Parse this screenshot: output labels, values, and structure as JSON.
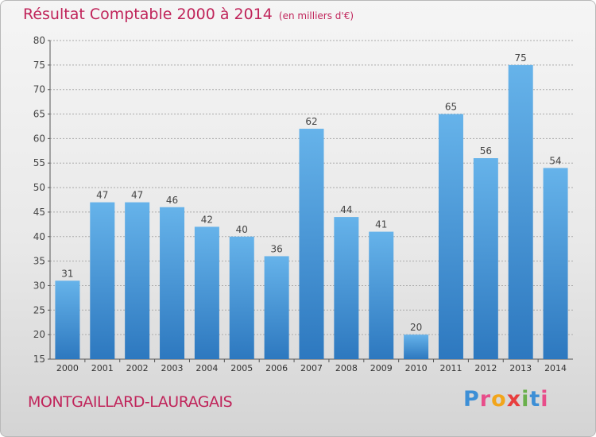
{
  "header": {
    "title": "Résultat Comptable 2000 à 2014",
    "unit": "(en milliers d'€)"
  },
  "footer": {
    "commune": "MONTGAILLARD-LAURAGAIS",
    "brand": "Proxiti"
  },
  "colors": {
    "title": "#c0245a",
    "bar_top": "#66b3ea",
    "bar_bottom": "#2d78bf",
    "grid": "#aaaaaa"
  },
  "chart_data": {
    "type": "bar",
    "title": "Résultat Comptable 2000 à 2014",
    "subtitle": "(en milliers d'€)",
    "xlabel": "",
    "ylabel": "",
    "categories": [
      "2000",
      "2001",
      "2002",
      "2003",
      "2004",
      "2005",
      "2006",
      "2007",
      "2008",
      "2009",
      "2010",
      "2011",
      "2012",
      "2013",
      "2014"
    ],
    "values": [
      31,
      47,
      47,
      46,
      42,
      40,
      36,
      62,
      44,
      41,
      20,
      65,
      56,
      75,
      54
    ],
    "ylim": [
      15,
      80
    ],
    "yticks": [
      15,
      20,
      25,
      30,
      35,
      40,
      45,
      50,
      55,
      60,
      65,
      70,
      75,
      80
    ],
    "grid": true,
    "data_labels": true
  }
}
